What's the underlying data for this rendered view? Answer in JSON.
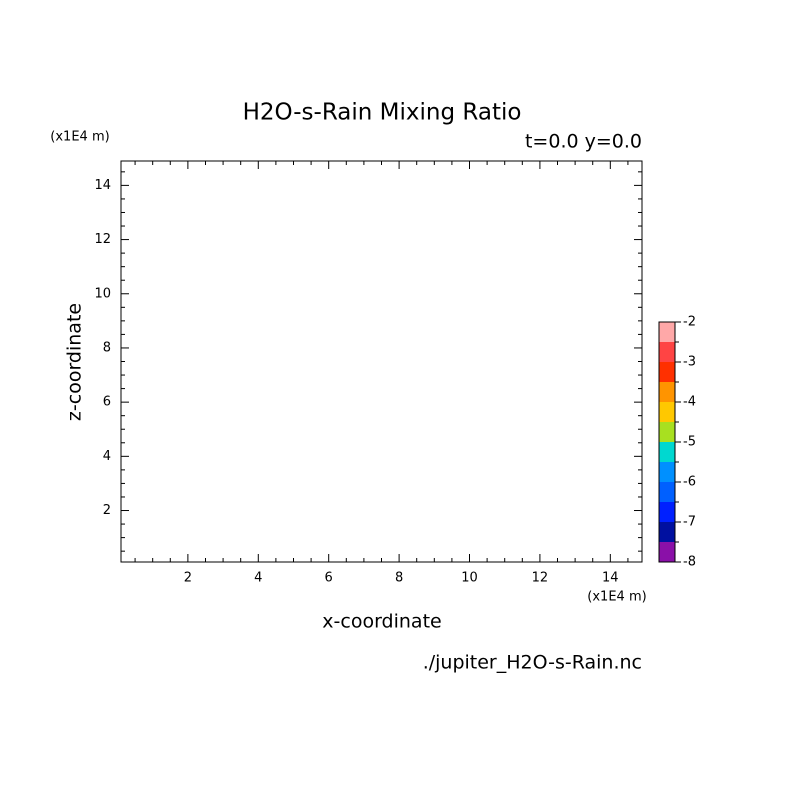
{
  "chart_data": {
    "type": "contour",
    "title": "H2O-s-Rain Mixing Ratio",
    "subtitle": "t=0.0 y=0.0",
    "x_label": "x-coordinate",
    "y_label": "z-coordinate",
    "x_unit": "(x1E4 m)",
    "y_unit": "(x1E4 m)",
    "source": "./jupiter_H2O-s-Rain.nc",
    "xlim": [
      0.1,
      14.9
    ],
    "ylim": [
      0.1,
      14.9
    ],
    "xticks": [
      2,
      4,
      6,
      8,
      10,
      12,
      14
    ],
    "yticks": [
      2,
      4,
      6,
      8,
      10,
      12,
      14
    ],
    "colorbar": {
      "levels": [
        -8,
        -7.5,
        -7,
        -6.5,
        -6,
        -5.5,
        -5,
        -4.5,
        -4,
        -3.5,
        -3,
        -2.5,
        -2
      ],
      "colors": [
        "#8a10a8",
        "#0010a0",
        "#0020ff",
        "#0060ff",
        "#0090ff",
        "#00d8d0",
        "#a8e020",
        "#ffc800",
        "#ff9400",
        "#ff3000",
        "#ff4444",
        "#ffa8a8"
      ],
      "ticks": [
        -8,
        -7,
        -6,
        -5,
        -4,
        -3,
        -2
      ]
    }
  }
}
